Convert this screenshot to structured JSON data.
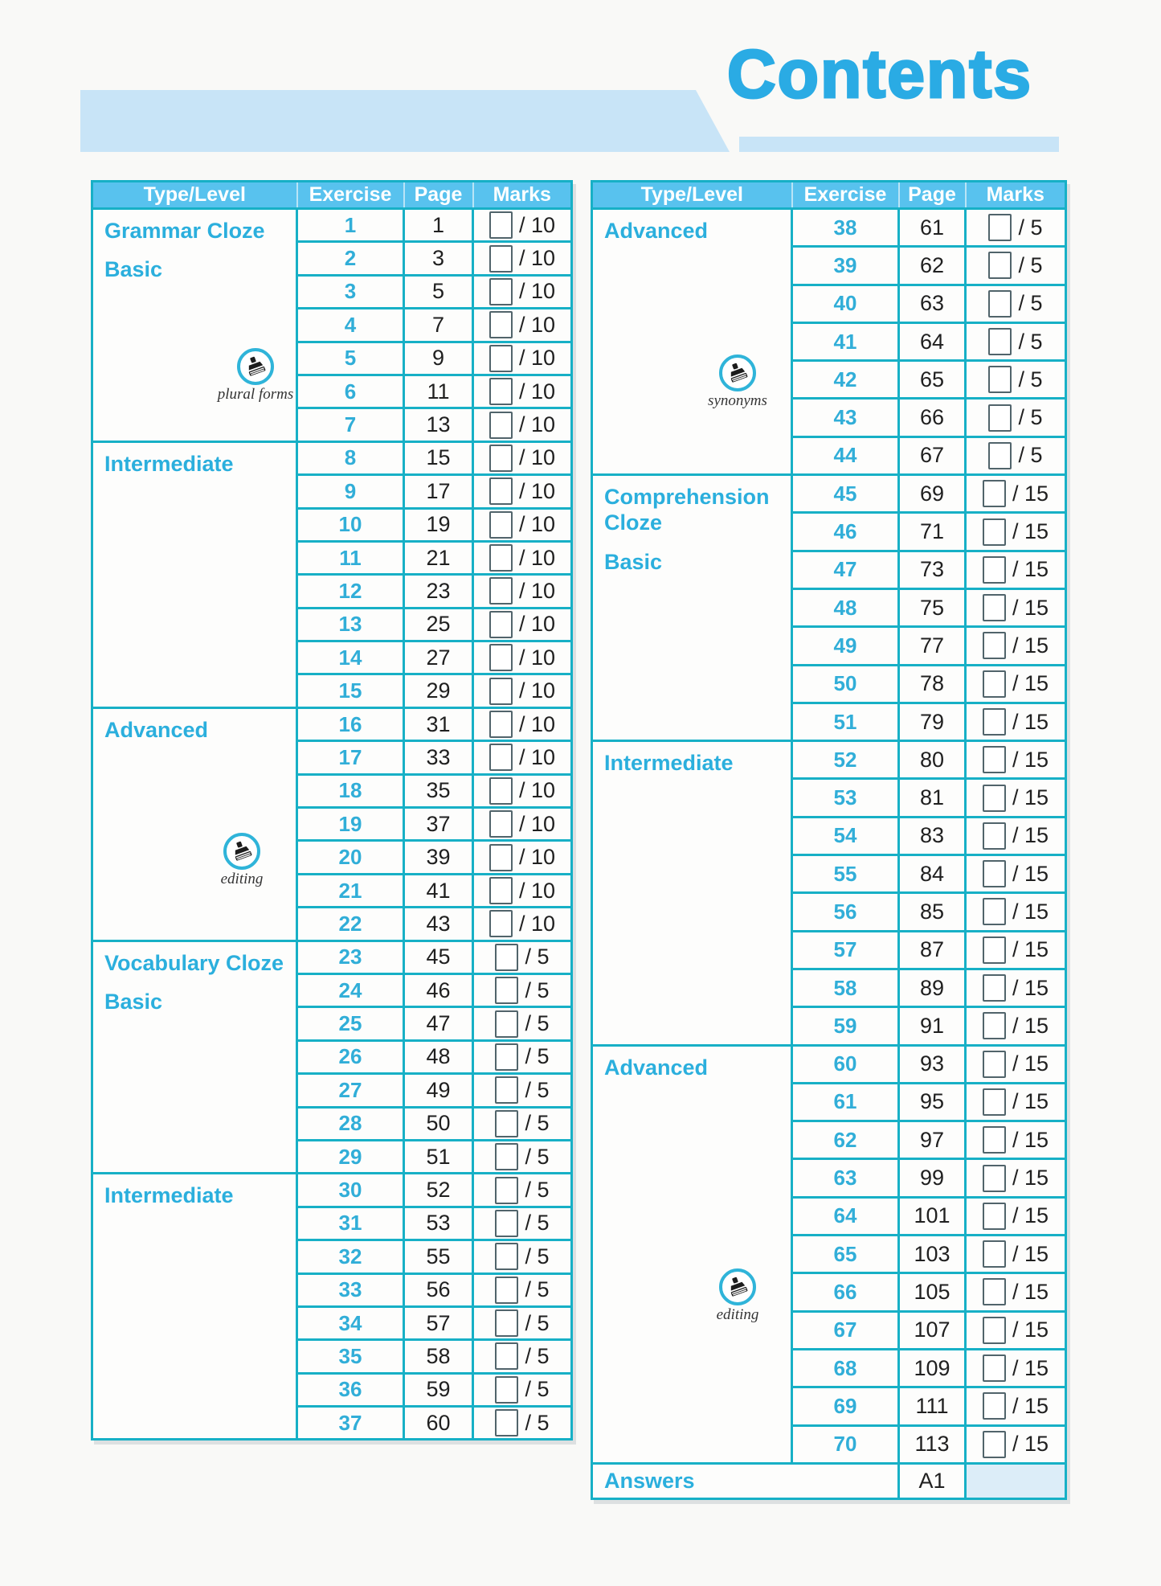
{
  "page_title": "Contents",
  "columns": [
    "Type/Level",
    "Exercise",
    "Page",
    "Marks"
  ],
  "colors": {
    "accent_cyan": "#2aabe4",
    "teal_border": "#17b0c6",
    "header_bg": "#58c2ee",
    "banner_bg": "#c8e4f7",
    "answers_marks_bg": "#dcedf8"
  },
  "left_table": {
    "sections": [
      {
        "labels": [
          "Grammar Cloze",
          "Basic"
        ],
        "stamp": {
          "id": "plural-forms",
          "label": "plural forms"
        },
        "rows": [
          {
            "exercise": "1",
            "page": "1",
            "marks": "/ 10"
          },
          {
            "exercise": "2",
            "page": "3",
            "marks": "/ 10"
          },
          {
            "exercise": "3",
            "page": "5",
            "marks": "/ 10"
          },
          {
            "exercise": "4",
            "page": "7",
            "marks": "/ 10"
          },
          {
            "exercise": "5",
            "page": "9",
            "marks": "/ 10"
          },
          {
            "exercise": "6",
            "page": "11",
            "marks": "/ 10"
          },
          {
            "exercise": "7",
            "page": "13",
            "marks": "/ 10"
          }
        ]
      },
      {
        "labels": [
          "Intermediate"
        ],
        "rows": [
          {
            "exercise": "8",
            "page": "15",
            "marks": "/ 10"
          },
          {
            "exercise": "9",
            "page": "17",
            "marks": "/ 10"
          },
          {
            "exercise": "10",
            "page": "19",
            "marks": "/ 10"
          },
          {
            "exercise": "11",
            "page": "21",
            "marks": "/ 10"
          },
          {
            "exercise": "12",
            "page": "23",
            "marks": "/ 10"
          },
          {
            "exercise": "13",
            "page": "25",
            "marks": "/ 10"
          },
          {
            "exercise": "14",
            "page": "27",
            "marks": "/ 10"
          },
          {
            "exercise": "15",
            "page": "29",
            "marks": "/ 10"
          }
        ]
      },
      {
        "labels": [
          "Advanced"
        ],
        "stamp": {
          "id": "editing-left",
          "label": "editing"
        },
        "rows": [
          {
            "exercise": "16",
            "page": "31",
            "marks": "/ 10"
          },
          {
            "exercise": "17",
            "page": "33",
            "marks": "/ 10"
          },
          {
            "exercise": "18",
            "page": "35",
            "marks": "/ 10"
          },
          {
            "exercise": "19",
            "page": "37",
            "marks": "/ 10"
          },
          {
            "exercise": "20",
            "page": "39",
            "marks": "/ 10"
          },
          {
            "exercise": "21",
            "page": "41",
            "marks": "/ 10"
          },
          {
            "exercise": "22",
            "page": "43",
            "marks": "/ 10"
          }
        ]
      },
      {
        "labels": [
          "Vocabulary Cloze",
          "Basic"
        ],
        "rows": [
          {
            "exercise": "23",
            "page": "45",
            "marks": "/ 5"
          },
          {
            "exercise": "24",
            "page": "46",
            "marks": "/ 5"
          },
          {
            "exercise": "25",
            "page": "47",
            "marks": "/ 5"
          },
          {
            "exercise": "26",
            "page": "48",
            "marks": "/ 5"
          },
          {
            "exercise": "27",
            "page": "49",
            "marks": "/ 5"
          },
          {
            "exercise": "28",
            "page": "50",
            "marks": "/ 5"
          },
          {
            "exercise": "29",
            "page": "51",
            "marks": "/ 5"
          }
        ]
      },
      {
        "labels": [
          "Intermediate"
        ],
        "rows": [
          {
            "exercise": "30",
            "page": "52",
            "marks": "/ 5"
          },
          {
            "exercise": "31",
            "page": "53",
            "marks": "/ 5"
          },
          {
            "exercise": "32",
            "page": "55",
            "marks": "/ 5"
          },
          {
            "exercise": "33",
            "page": "56",
            "marks": "/ 5"
          },
          {
            "exercise": "34",
            "page": "57",
            "marks": "/ 5"
          },
          {
            "exercise": "35",
            "page": "58",
            "marks": "/ 5"
          },
          {
            "exercise": "36",
            "page": "59",
            "marks": "/ 5"
          },
          {
            "exercise": "37",
            "page": "60",
            "marks": "/ 5"
          }
        ]
      }
    ]
  },
  "right_table": {
    "sections": [
      {
        "labels": [
          "Advanced"
        ],
        "stamp": {
          "id": "synonyms",
          "label": "synonyms"
        },
        "rows": [
          {
            "exercise": "38",
            "page": "61",
            "marks": "/ 5"
          },
          {
            "exercise": "39",
            "page": "62",
            "marks": "/ 5"
          },
          {
            "exercise": "40",
            "page": "63",
            "marks": "/ 5"
          },
          {
            "exercise": "41",
            "page": "64",
            "marks": "/ 5"
          },
          {
            "exercise": "42",
            "page": "65",
            "marks": "/ 5"
          },
          {
            "exercise": "43",
            "page": "66",
            "marks": "/ 5"
          },
          {
            "exercise": "44",
            "page": "67",
            "marks": "/ 5"
          }
        ]
      },
      {
        "labels": [
          "Comprehension Cloze",
          "Basic"
        ],
        "rows": [
          {
            "exercise": "45",
            "page": "69",
            "marks": "/ 15"
          },
          {
            "exercise": "46",
            "page": "71",
            "marks": "/ 15"
          },
          {
            "exercise": "47",
            "page": "73",
            "marks": "/ 15"
          },
          {
            "exercise": "48",
            "page": "75",
            "marks": "/ 15"
          },
          {
            "exercise": "49",
            "page": "77",
            "marks": "/ 15"
          },
          {
            "exercise": "50",
            "page": "78",
            "marks": "/ 15"
          },
          {
            "exercise": "51",
            "page": "79",
            "marks": "/ 15"
          }
        ]
      },
      {
        "labels": [
          "Intermediate"
        ],
        "rows": [
          {
            "exercise": "52",
            "page": "80",
            "marks": "/ 15"
          },
          {
            "exercise": "53",
            "page": "81",
            "marks": "/ 15"
          },
          {
            "exercise": "54",
            "page": "83",
            "marks": "/ 15"
          },
          {
            "exercise": "55",
            "page": "84",
            "marks": "/ 15"
          },
          {
            "exercise": "56",
            "page": "85",
            "marks": "/ 15"
          },
          {
            "exercise": "57",
            "page": "87",
            "marks": "/ 15"
          },
          {
            "exercise": "58",
            "page": "89",
            "marks": "/ 15"
          },
          {
            "exercise": "59",
            "page": "91",
            "marks": "/ 15"
          }
        ]
      },
      {
        "labels": [
          "Advanced"
        ],
        "stamp": {
          "id": "editing-right",
          "label": "editing"
        },
        "rows": [
          {
            "exercise": "60",
            "page": "93",
            "marks": "/ 15"
          },
          {
            "exercise": "61",
            "page": "95",
            "marks": "/ 15"
          },
          {
            "exercise": "62",
            "page": "97",
            "marks": "/ 15"
          },
          {
            "exercise": "63",
            "page": "99",
            "marks": "/ 15"
          },
          {
            "exercise": "64",
            "page": "101",
            "marks": "/ 15"
          },
          {
            "exercise": "65",
            "page": "103",
            "marks": "/ 15"
          },
          {
            "exercise": "66",
            "page": "105",
            "marks": "/ 15"
          },
          {
            "exercise": "67",
            "page": "107",
            "marks": "/ 15"
          },
          {
            "exercise": "68",
            "page": "109",
            "marks": "/ 15"
          },
          {
            "exercise": "69",
            "page": "111",
            "marks": "/ 15"
          },
          {
            "exercise": "70",
            "page": "113",
            "marks": "/ 15"
          }
        ]
      }
    ],
    "footer": {
      "label": "Answers",
      "page": "A1"
    }
  }
}
